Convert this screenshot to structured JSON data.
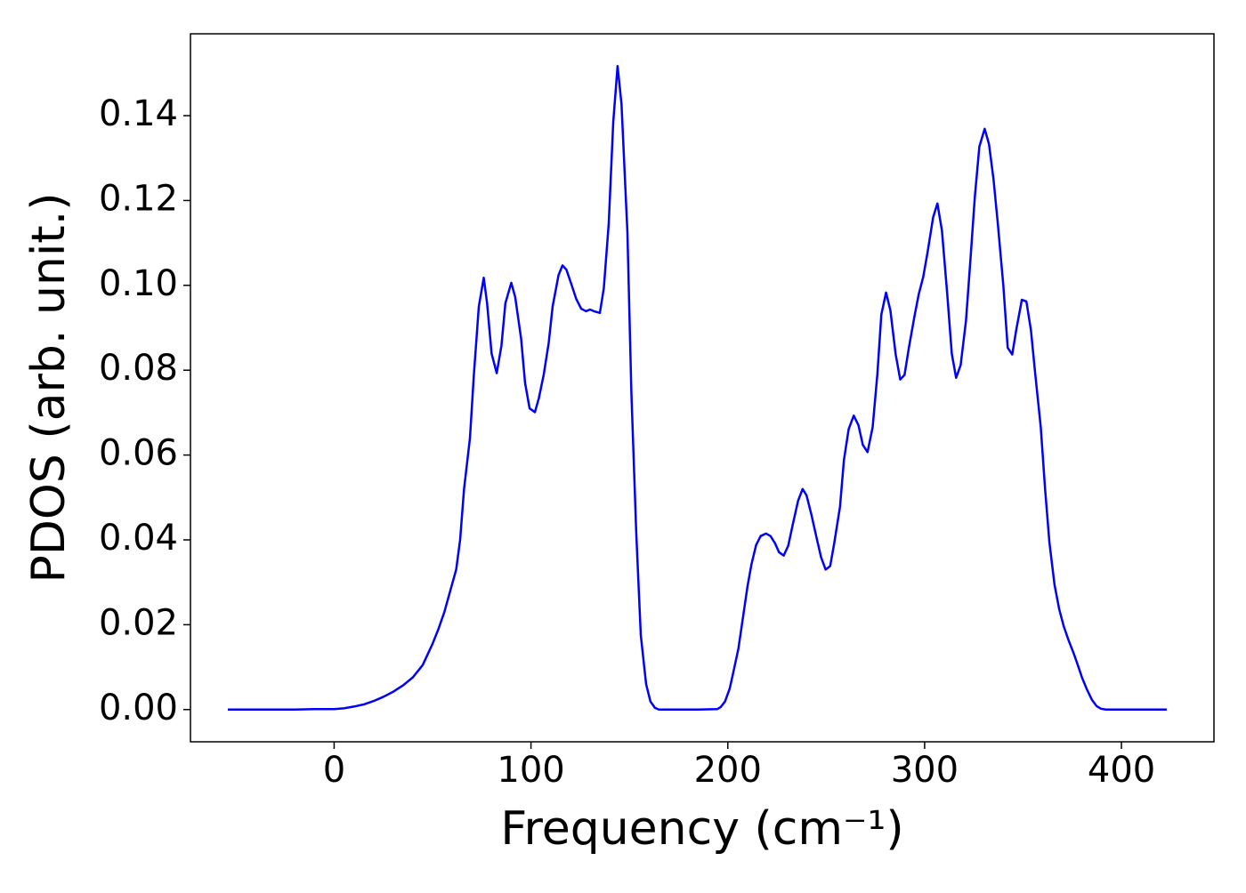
{
  "chart_data": {
    "type": "line",
    "xlabel": "Frequency (cm⁻¹)",
    "ylabel": "PDOS (arb. unit.)",
    "x": [
      -54,
      -40,
      -30,
      -20,
      -10,
      0,
      5,
      10,
      15,
      20,
      25,
      30,
      35,
      40,
      45,
      50,
      53,
      56,
      59,
      62,
      64,
      66,
      69,
      71,
      73.5,
      76,
      77.7,
      80,
      82.6,
      85,
      87,
      90,
      92,
      95,
      97,
      99.3,
      102,
      104,
      106.5,
      109,
      111,
      114,
      116,
      118,
      120.5,
      123,
      125.5,
      128,
      130,
      132,
      135,
      137,
      139.5,
      141.8,
      144,
      146,
      149,
      151,
      153.5,
      155.8,
      158.5,
      160.7,
      163,
      165,
      175,
      185,
      194.6,
      196.4,
      198.6,
      201,
      203,
      205.4,
      207.7,
      210,
      212,
      214.4,
      216.7,
      219.4,
      221.7,
      224,
      226,
      228.4,
      230.7,
      233,
      235.7,
      238,
      240,
      242.4,
      245,
      247.4,
      249.7,
      252,
      254,
      257,
      259,
      261.4,
      264,
      266.4,
      268.6,
      271,
      273.6,
      276,
      278,
      280.4,
      282.6,
      285.3,
      287.6,
      289.8,
      292,
      294.8,
      297,
      299.3,
      301.6,
      304.3,
      306.5,
      308.8,
      311.5,
      313.8,
      316,
      318.3,
      321,
      323.3,
      325.5,
      327.8,
      330.5,
      332.7,
      335,
      337.2,
      340,
      342.2,
      344.5,
      346.7,
      349.4,
      351.7,
      354,
      356.2,
      359,
      361.2,
      363.4,
      366,
      368.4,
      370.7,
      373,
      375.6,
      377.9,
      380,
      382.4,
      385,
      387.4,
      389.6,
      392,
      400,
      410,
      423
    ],
    "series": [
      {
        "color": "#0000ff",
        "values": [
          0,
          0,
          0,
          0,
          0.0001,
          0.0001,
          0.0003,
          0.0007,
          0.0012,
          0.002,
          0.003,
          0.0042,
          0.0057,
          0.0076,
          0.0105,
          0.0155,
          0.019,
          0.023,
          0.028,
          0.033,
          0.04,
          0.052,
          0.064,
          0.079,
          0.095,
          0.1018,
          0.0958,
          0.0839,
          0.0793,
          0.0858,
          0.0958,
          0.1006,
          0.0972,
          0.0874,
          0.077,
          0.071,
          0.0701,
          0.0734,
          0.079,
          0.0864,
          0.095,
          0.1024,
          0.1047,
          0.1037,
          0.1003,
          0.0968,
          0.0945,
          0.0939,
          0.0943,
          0.0939,
          0.0935,
          0.0993,
          0.1145,
          0.1385,
          0.1517,
          0.1427,
          0.1125,
          0.0749,
          0.0415,
          0.0175,
          0.006,
          0.0019,
          0.0004,
          0,
          0,
          0,
          0.0001,
          0.0006,
          0.0019,
          0.005,
          0.0092,
          0.0144,
          0.0217,
          0.029,
          0.0342,
          0.0388,
          0.0409,
          0.0415,
          0.0409,
          0.0392,
          0.0371,
          0.0363,
          0.0386,
          0.0436,
          0.0492,
          0.052,
          0.0505,
          0.0461,
          0.0407,
          0.0359,
          0.033,
          0.0338,
          0.039,
          0.0478,
          0.0588,
          0.0661,
          0.0693,
          0.067,
          0.0624,
          0.0607,
          0.0666,
          0.0791,
          0.0931,
          0.0983,
          0.0941,
          0.0837,
          0.0778,
          0.0789,
          0.0853,
          0.0926,
          0.0979,
          0.102,
          0.1081,
          0.116,
          0.1193,
          0.1129,
          0.0979,
          0.0839,
          0.0782,
          0.0812,
          0.0916,
          0.1062,
          0.1208,
          0.1327,
          0.1369,
          0.1333,
          0.125,
          0.1145,
          0.0999,
          0.0853,
          0.0837,
          0.0899,
          0.0966,
          0.0962,
          0.0895,
          0.0791,
          0.0666,
          0.052,
          0.0394,
          0.0294,
          0.0236,
          0.0196,
          0.0165,
          0.0134,
          0.0104,
          0.0075,
          0.0048,
          0.0023,
          0.0008,
          0.0002,
          0,
          0,
          0,
          0
        ]
      }
    ],
    "xlim": [
      -73,
      447
    ],
    "ylim": [
      -0.0076,
      0.1593
    ],
    "xticks": [
      0,
      100,
      200,
      300,
      400
    ],
    "yticks": [
      {
        "value": 0,
        "label": "0.00"
      },
      {
        "value": 0.02,
        "label": "0.02"
      },
      {
        "value": 0.04,
        "label": "0.04"
      },
      {
        "value": 0.06,
        "label": "0.06"
      },
      {
        "value": 0.08,
        "label": "0.08"
      },
      {
        "value": 0.1,
        "label": "0.10"
      },
      {
        "value": 0.12,
        "label": "0.12"
      },
      {
        "value": 0.14,
        "label": "0.14"
      }
    ]
  }
}
